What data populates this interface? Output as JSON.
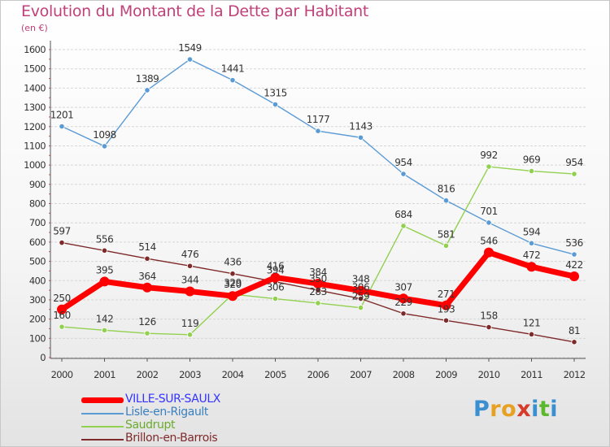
{
  "title": "Evolution du Montant de la Dette par Habitant",
  "unit_label": "(en €)",
  "logo": {
    "letters": [
      "P",
      "r",
      "o",
      "x",
      "i",
      "t",
      "i"
    ],
    "colors": [
      "#3a8fd0",
      "#e8a020",
      "#e8a020",
      "#d83a2a",
      "#3a8fd0",
      "#5cb82e",
      "#3a8fd0"
    ]
  },
  "chart_data": {
    "type": "line",
    "x": [
      "2000",
      "2001",
      "2002",
      "2003",
      "2004",
      "2005",
      "2006",
      "2007",
      "2008",
      "2009",
      "2010",
      "2011",
      "2012"
    ],
    "yticks": [
      0,
      100,
      200,
      300,
      400,
      500,
      600,
      700,
      800,
      900,
      1000,
      1100,
      1200,
      1300,
      1400,
      1500,
      1600
    ],
    "ylim": [
      0,
      1650
    ],
    "grid": "horizontal",
    "legend_position": "bottom-left",
    "series": [
      {
        "name": "VILLE-SUR-SAULX",
        "color": "#ff0000",
        "label_color": "#3333ff",
        "values": [
          250,
          395,
          364,
          344,
          320,
          416,
          384,
          348,
          307,
          271,
          546,
          472,
          422
        ]
      },
      {
        "name": "Lisle-en-Rigault",
        "color": "#5b9bd5",
        "label_color": "#3a7fbf",
        "values": [
          1201,
          1098,
          1389,
          1549,
          1441,
          1315,
          1177,
          1143,
          954,
          816,
          701,
          594,
          536
        ]
      },
      {
        "name": "Saudrupt",
        "color": "#92d050",
        "label_color": "#6aab2e",
        "values": [
          160,
          142,
          126,
          119,
          329,
          306,
          283,
          259,
          684,
          581,
          992,
          969,
          954
        ]
      },
      {
        "name": "Brillon-en-Barrois",
        "color": "#7f2a2a",
        "label_color": "#7f2a2a",
        "values": [
          597,
          556,
          514,
          476,
          436,
          394,
          350,
          306,
          229,
          193,
          158,
          121,
          81
        ]
      }
    ]
  }
}
